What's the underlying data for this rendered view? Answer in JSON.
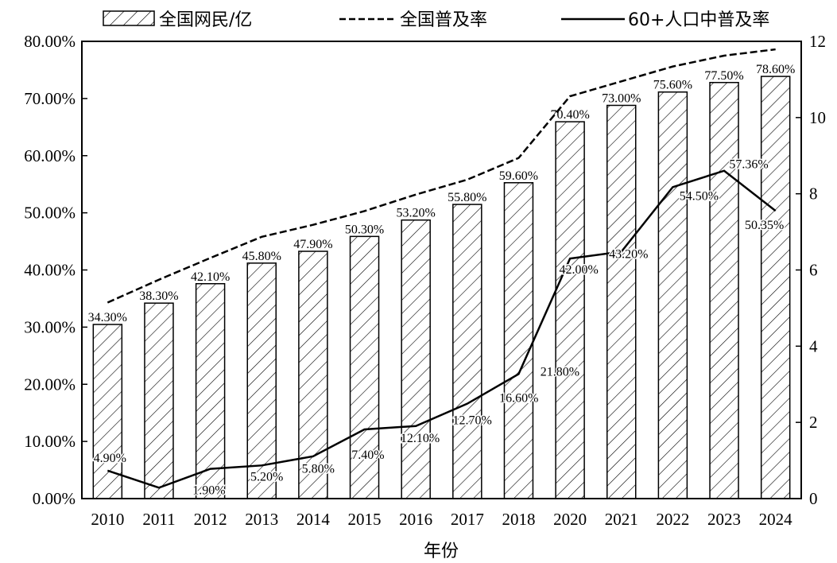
{
  "chart_data": {
    "type": "bar",
    "xlabel": "年份",
    "ylabel": "",
    "ylabel_right": "",
    "categories": [
      "2010",
      "2011",
      "2012",
      "2013",
      "2014",
      "2015",
      "2016",
      "2017",
      "2018",
      "2020",
      "2021",
      "2022",
      "2023",
      "2024"
    ],
    "ylim": [
      0,
      80
    ],
    "ylim_right": [
      0,
      12
    ],
    "yticks": [
      "0.00%",
      "10.00%",
      "20.00%",
      "30.00%",
      "40.00%",
      "50.00%",
      "60.00%",
      "70.00%",
      "80.00%"
    ],
    "yticks_right": [
      "0",
      "2",
      "4",
      "6",
      "8",
      "10",
      "12"
    ],
    "legend_placement": "top",
    "grid": false,
    "series": [
      {
        "name": "全国网民/亿",
        "type": "bar",
        "axis": "right",
        "pattern": "diagonal-hatch",
        "values": [
          4.57,
          5.13,
          5.64,
          6.18,
          6.49,
          6.88,
          7.31,
          7.72,
          8.29,
          9.89,
          10.32,
          10.67,
          10.92,
          11.08
        ]
      },
      {
        "name": "全国普及率",
        "type": "line",
        "style": "dashed",
        "axis": "left",
        "values": [
          34.3,
          38.3,
          42.1,
          45.8,
          47.9,
          50.3,
          53.2,
          55.8,
          59.6,
          70.4,
          73.0,
          75.6,
          77.5,
          78.6
        ],
        "labels": [
          "34.30%",
          "38.30%",
          "42.10%",
          "45.80%",
          "47.90%",
          "50.30%",
          "53.20%",
          "55.80%",
          "59.60%",
          "70.40%",
          "73.00%",
          "75.60%",
          "77.50%",
          "78.60%"
        ]
      },
      {
        "name": "60+人口中普及率",
        "type": "line",
        "style": "solid",
        "axis": "left",
        "values": [
          4.9,
          1.9,
          5.2,
          5.8,
          7.4,
          12.1,
          12.7,
          16.6,
          21.8,
          42.0,
          43.2,
          54.5,
          57.36,
          50.35
        ],
        "labels": [
          "4.90%",
          "1.90%",
          "5.20%",
          "5.80%",
          "7.40%",
          "12.10%",
          "12.70%",
          "16.60%",
          "21.80%",
          "42.00%",
          "43.20%",
          "54.50%",
          "57.36%",
          "50.35%"
        ]
      }
    ]
  }
}
